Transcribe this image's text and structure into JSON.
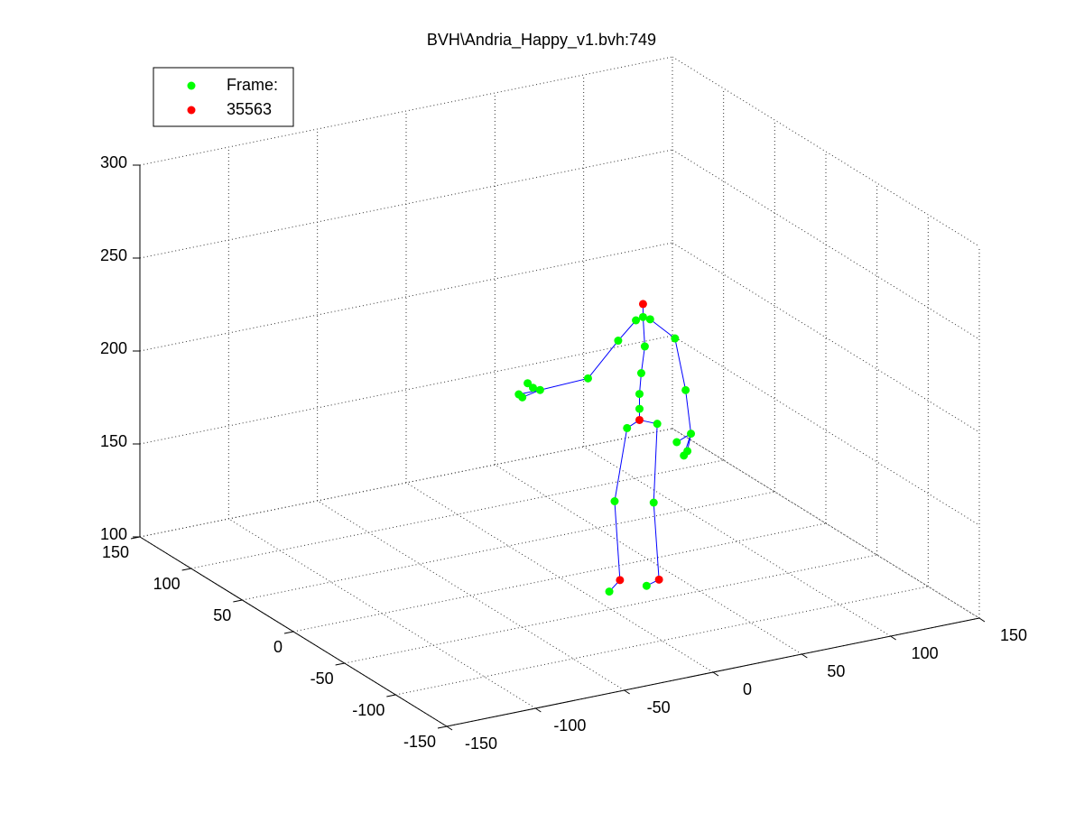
{
  "chart_data": {
    "type": "scatter3d",
    "title": "BVH\\Andria_Happy_v1.bvh:749",
    "xlim": [
      -150,
      150
    ],
    "xticks": [
      -150,
      -100,
      -50,
      0,
      50,
      100,
      150
    ],
    "ylim": [
      -150,
      150
    ],
    "yticks": [
      -150,
      -100,
      -50,
      0,
      50,
      100,
      150
    ],
    "zlim": [
      100,
      300
    ],
    "zticks": [
      100,
      150,
      200,
      250,
      300
    ],
    "grid": true,
    "legend": "upper left",
    "line_color": "#0000ff",
    "series": [
      {
        "name": "Frame:",
        "color": "#00ff00",
        "x": [
          47,
          43,
          51,
          48,
          46,
          45,
          45,
          33,
          16,
          -11,
          -21,
          -18,
          -23,
          -15,
          65,
          71,
          74,
          66,
          70,
          72,
          38,
          55,
          31,
          53,
          28,
          49
        ],
        "y": [
          0,
          0,
          0,
          0,
          0,
          0,
          0,
          0,
          0,
          0,
          0,
          0,
          0,
          0,
          0,
          0,
          0,
          0,
          0,
          0,
          0,
          0,
          0,
          0,
          0,
          0
        ],
        "z": [
          231,
          230,
          229,
          215,
          201,
          190,
          182,
          221,
          204,
          203,
          201,
          208,
          203,
          205,
          216,
          187,
          163,
          160,
          152,
          154,
          173,
          172,
          135,
          130,
          87,
          86
        ]
      },
      {
        "name": "35563",
        "color": "#ff0000",
        "x": [
          47,
          45,
          34,
          56
        ],
        "y": [
          0,
          0,
          0,
          0
        ],
        "z": [
          238,
          176,
          92,
          88
        ]
      }
    ]
  }
}
